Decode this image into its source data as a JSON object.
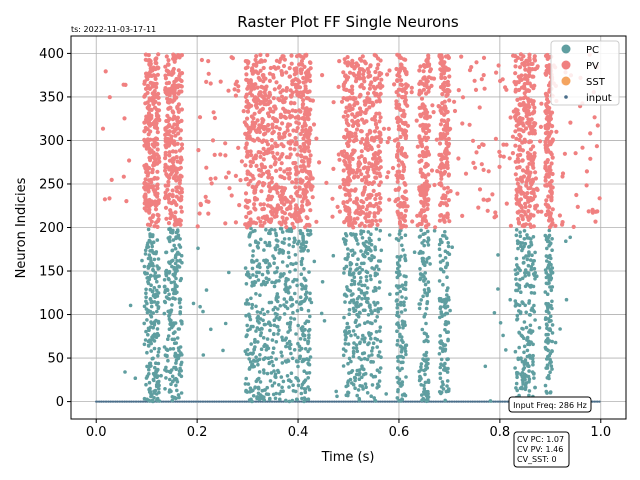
{
  "chart_data": {
    "type": "scatter",
    "title": "Raster Plot FF Single Neurons",
    "timestamp": "ts: 2022-11-03-17-11",
    "xlabel": "Time (s)",
    "ylabel": "Neuron Indicies",
    "xlim": [
      -0.05,
      1.05
    ],
    "ylim": [
      -20,
      420
    ],
    "xticks": [
      0.0,
      0.2,
      0.4,
      0.6,
      0.8,
      1.0
    ],
    "xtick_labels": [
      "0.0",
      "0.2",
      "0.4",
      "0.6",
      "0.8",
      "1.0"
    ],
    "yticks": [
      0,
      50,
      100,
      150,
      200,
      250,
      300,
      350,
      400
    ],
    "ytick_labels": [
      "0",
      "50",
      "100",
      "150",
      "200",
      "250",
      "300",
      "350",
      "400"
    ],
    "grid": true,
    "legend_position": "top-right",
    "series": [
      {
        "name": "PC",
        "color": "#5f9ea0",
        "neuron_range": [
          0,
          199
        ]
      },
      {
        "name": "PV",
        "color": "#f08080",
        "neuron_range": [
          200,
          399
        ]
      },
      {
        "name": "SST",
        "color": "#f4a460",
        "neuron_range": []
      },
      {
        "name": "input",
        "color": "#4a6e8a",
        "neuron_range": [
          0,
          0
        ]
      }
    ],
    "burst_windows_s": [
      {
        "start": 0.095,
        "end": 0.125
      },
      {
        "start": 0.135,
        "end": 0.17
      },
      {
        "start": 0.295,
        "end": 0.345
      },
      {
        "start": 0.345,
        "end": 0.405
      },
      {
        "start": 0.405,
        "end": 0.425
      },
      {
        "start": 0.49,
        "end": 0.535
      },
      {
        "start": 0.535,
        "end": 0.565
      },
      {
        "start": 0.595,
        "end": 0.615
      },
      {
        "start": 0.64,
        "end": 0.66
      },
      {
        "start": 0.68,
        "end": 0.7
      },
      {
        "start": 0.83,
        "end": 0.87
      },
      {
        "start": 0.89,
        "end": 0.905
      }
    ],
    "annotations": {
      "input_freq": "Input Freq: 286 Hz",
      "cv_pc": "CV PC: 1.07",
      "cv_pv": "CV PV: 1.46",
      "cv_sst": "CV_SST: 0"
    }
  }
}
